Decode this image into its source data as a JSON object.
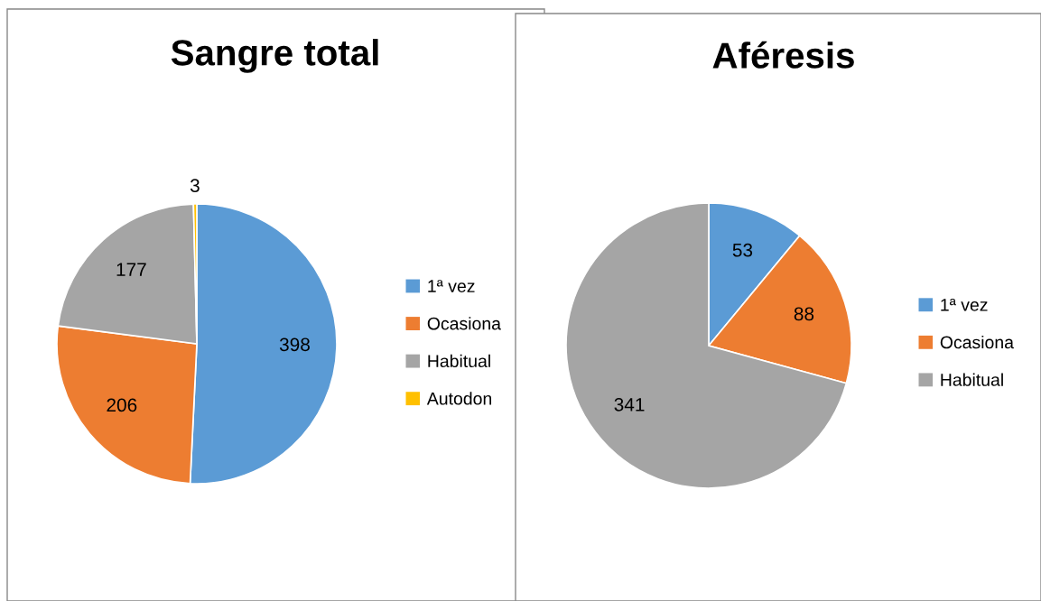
{
  "chart_data": [
    {
      "type": "pie",
      "title": "Sangre total",
      "categories": [
        "1ª vez",
        "Ocasiona",
        "Habitual",
        "Autodon"
      ],
      "values": [
        398,
        206,
        177,
        3
      ],
      "colors": [
        "#5b9bd5",
        "#ed7d31",
        "#a5a5a5",
        "#ffc000"
      ],
      "data_labels": true,
      "legend": "right"
    },
    {
      "type": "pie",
      "title": "Aféresis",
      "categories": [
        "1ª vez",
        "Ocasiona",
        "Habitual"
      ],
      "values": [
        53,
        88,
        341
      ],
      "colors": [
        "#5b9bd5",
        "#ed7d31",
        "#a5a5a5"
      ],
      "data_labels": true,
      "legend": "right"
    }
  ]
}
